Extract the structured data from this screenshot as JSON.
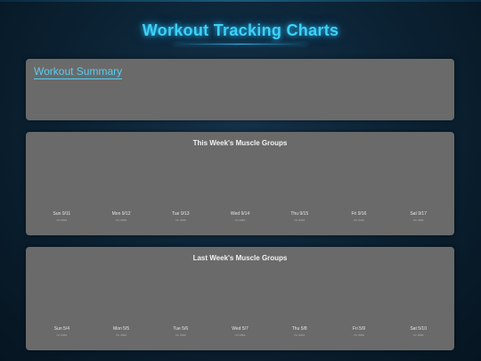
{
  "header": {
    "title": "Workout Tracking Charts"
  },
  "summary": {
    "heading": "Workout Summary"
  },
  "this_week": {
    "title": "This Week's Muscle Groups",
    "days": [
      {
        "label": "Sun 9/11",
        "status": "no data"
      },
      {
        "label": "Mon 9/12",
        "status": "no data"
      },
      {
        "label": "Tue 9/13",
        "status": "no data"
      },
      {
        "label": "Wed 9/14",
        "status": "no data"
      },
      {
        "label": "Thu 9/15",
        "status": "no data"
      },
      {
        "label": "Fri 9/16",
        "status": "no data"
      },
      {
        "label": "Sat 9/17",
        "status": "no data"
      }
    ]
  },
  "last_week": {
    "title": "Last Week's Muscle Groups",
    "days": [
      {
        "label": "Sun 5/4",
        "status": "no data"
      },
      {
        "label": "Mon 5/5",
        "status": "no data"
      },
      {
        "label": "Tue 5/6",
        "status": "no data"
      },
      {
        "label": "Wed 5/7",
        "status": "no data"
      },
      {
        "label": "Thu 5/8",
        "status": "no data"
      },
      {
        "label": "Fri 5/9",
        "status": "no data"
      },
      {
        "label": "Sat 5/10",
        "status": "no data"
      }
    ]
  },
  "colors": {
    "accent": "#3fd0f5",
    "panel": "#6a6a6a",
    "background": "#0c2436"
  }
}
